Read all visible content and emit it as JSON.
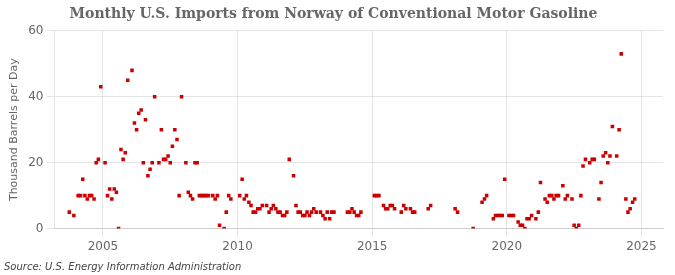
{
  "chart_data": {
    "type": "scatter",
    "title": "Monthly U.S. Imports from Norway of Conventional Motor Gasoline",
    "y_label": "Thousand Barrels per Day",
    "annotation": "Source: U.S. Energy Information Administration",
    "color": "#cc0000",
    "marker": "square",
    "grid": true,
    "xlim": [
      2003.2,
      2025.8
    ],
    "xticks": [
      2005,
      2010,
      2015,
      2020,
      2025
    ],
    "ylim": [
      0,
      60
    ],
    "yticks": [
      0,
      20,
      40,
      60
    ],
    "x": [
      2003.75,
      2003.92,
      2004.08,
      2004.17,
      2004.25,
      2004.33,
      2004.42,
      2004.5,
      2004.58,
      2004.67,
      2004.75,
      2004.83,
      2004.92,
      2005.08,
      2005.17,
      2005.25,
      2005.33,
      2005.42,
      2005.5,
      2005.58,
      2005.67,
      2005.75,
      2005.83,
      2005.92,
      2006.08,
      2006.17,
      2006.25,
      2006.33,
      2006.42,
      2006.5,
      2006.58,
      2006.67,
      2006.75,
      2006.83,
      2006.92,
      2007.08,
      2007.17,
      2007.25,
      2007.33,
      2007.42,
      2007.5,
      2007.58,
      2007.67,
      2007.75,
      2007.83,
      2007.92,
      2008.08,
      2008.17,
      2008.25,
      2008.33,
      2008.42,
      2008.5,
      2008.58,
      2008.67,
      2008.75,
      2008.83,
      2008.92,
      2009.08,
      2009.17,
      2009.25,
      2009.33,
      2009.5,
      2009.58,
      2009.67,
      2009.75,
      2010.08,
      2010.17,
      2010.25,
      2010.33,
      2010.42,
      2010.5,
      2010.58,
      2010.67,
      2010.75,
      2010.83,
      2010.92,
      2011.08,
      2011.17,
      2011.25,
      2011.33,
      2011.42,
      2011.5,
      2011.58,
      2011.67,
      2011.75,
      2011.83,
      2011.92,
      2012.08,
      2012.17,
      2012.25,
      2012.33,
      2012.42,
      2012.5,
      2012.58,
      2012.67,
      2012.75,
      2012.83,
      2012.92,
      2013.08,
      2013.17,
      2013.25,
      2013.33,
      2013.42,
      2013.5,
      2013.58,
      2014.08,
      2014.17,
      2014.25,
      2014.33,
      2014.42,
      2014.5,
      2014.58,
      2015.08,
      2015.17,
      2015.25,
      2015.42,
      2015.5,
      2015.58,
      2015.67,
      2015.75,
      2015.83,
      2016.08,
      2016.17,
      2016.25,
      2016.42,
      2016.5,
      2016.58,
      2017.08,
      2017.17,
      2018.08,
      2018.17,
      2018.75,
      2019.08,
      2019.17,
      2019.25,
      2019.5,
      2019.58,
      2019.67,
      2019.75,
      2019.83,
      2019.92,
      2020.08,
      2020.17,
      2020.25,
      2020.42,
      2020.5,
      2020.58,
      2020.67,
      2020.75,
      2020.83,
      2020.92,
      2021.08,
      2021.17,
      2021.25,
      2021.42,
      2021.5,
      2021.58,
      2021.67,
      2021.75,
      2021.83,
      2021.92,
      2022.08,
      2022.17,
      2022.25,
      2022.42,
      2022.5,
      2022.58,
      2022.67,
      2022.75,
      2022.83,
      2022.92,
      2023.08,
      2023.17,
      2023.25,
      2023.42,
      2023.5,
      2023.58,
      2023.67,
      2023.75,
      2023.83,
      2023.92,
      2024.08,
      2024.17,
      2024.25,
      2024.42,
      2024.5,
      2024.58,
      2024.67,
      2024.75
    ],
    "values": [
      5,
      4,
      10,
      10,
      15,
      10,
      9,
      10,
      10,
      9,
      20,
      21,
      43,
      20,
      10,
      12,
      9,
      12,
      11,
      0,
      24,
      21,
      23,
      45,
      48,
      32,
      30,
      35,
      36,
      20,
      33,
      16,
      18,
      20,
      40,
      20,
      30,
      21,
      21,
      22,
      20,
      25,
      30,
      27,
      10,
      40,
      20,
      11,
      10,
      9,
      20,
      20,
      10,
      10,
      10,
      10,
      10,
      10,
      9,
      10,
      1,
      0,
      5,
      10,
      9,
      10,
      15,
      9,
      10,
      8,
      7,
      5,
      5,
      6,
      6,
      7,
      7,
      5,
      6,
      7,
      6,
      5,
      5,
      4,
      4,
      5,
      21,
      16,
      7,
      5,
      5,
      4,
      4,
      5,
      4,
      5,
      6,
      5,
      5,
      4,
      3,
      5,
      3,
      5,
      5,
      5,
      5,
      6,
      5,
      4,
      4,
      5,
      10,
      10,
      10,
      7,
      6,
      6,
      7,
      7,
      6,
      5,
      7,
      6,
      6,
      5,
      5,
      6,
      7,
      6,
      5,
      0,
      8,
      9,
      10,
      3,
      4,
      4,
      4,
      4,
      15,
      4,
      4,
      4,
      2,
      1,
      1,
      0,
      3,
      3,
      4,
      3,
      5,
      14,
      9,
      8,
      10,
      10,
      9,
      10,
      10,
      13,
      9,
      10,
      9,
      1,
      0,
      1,
      10,
      19,
      21,
      20,
      21,
      21,
      9,
      14,
      22,
      23,
      20,
      22,
      31,
      22,
      30,
      53,
      9,
      5,
      6,
      8,
      9
    ]
  }
}
